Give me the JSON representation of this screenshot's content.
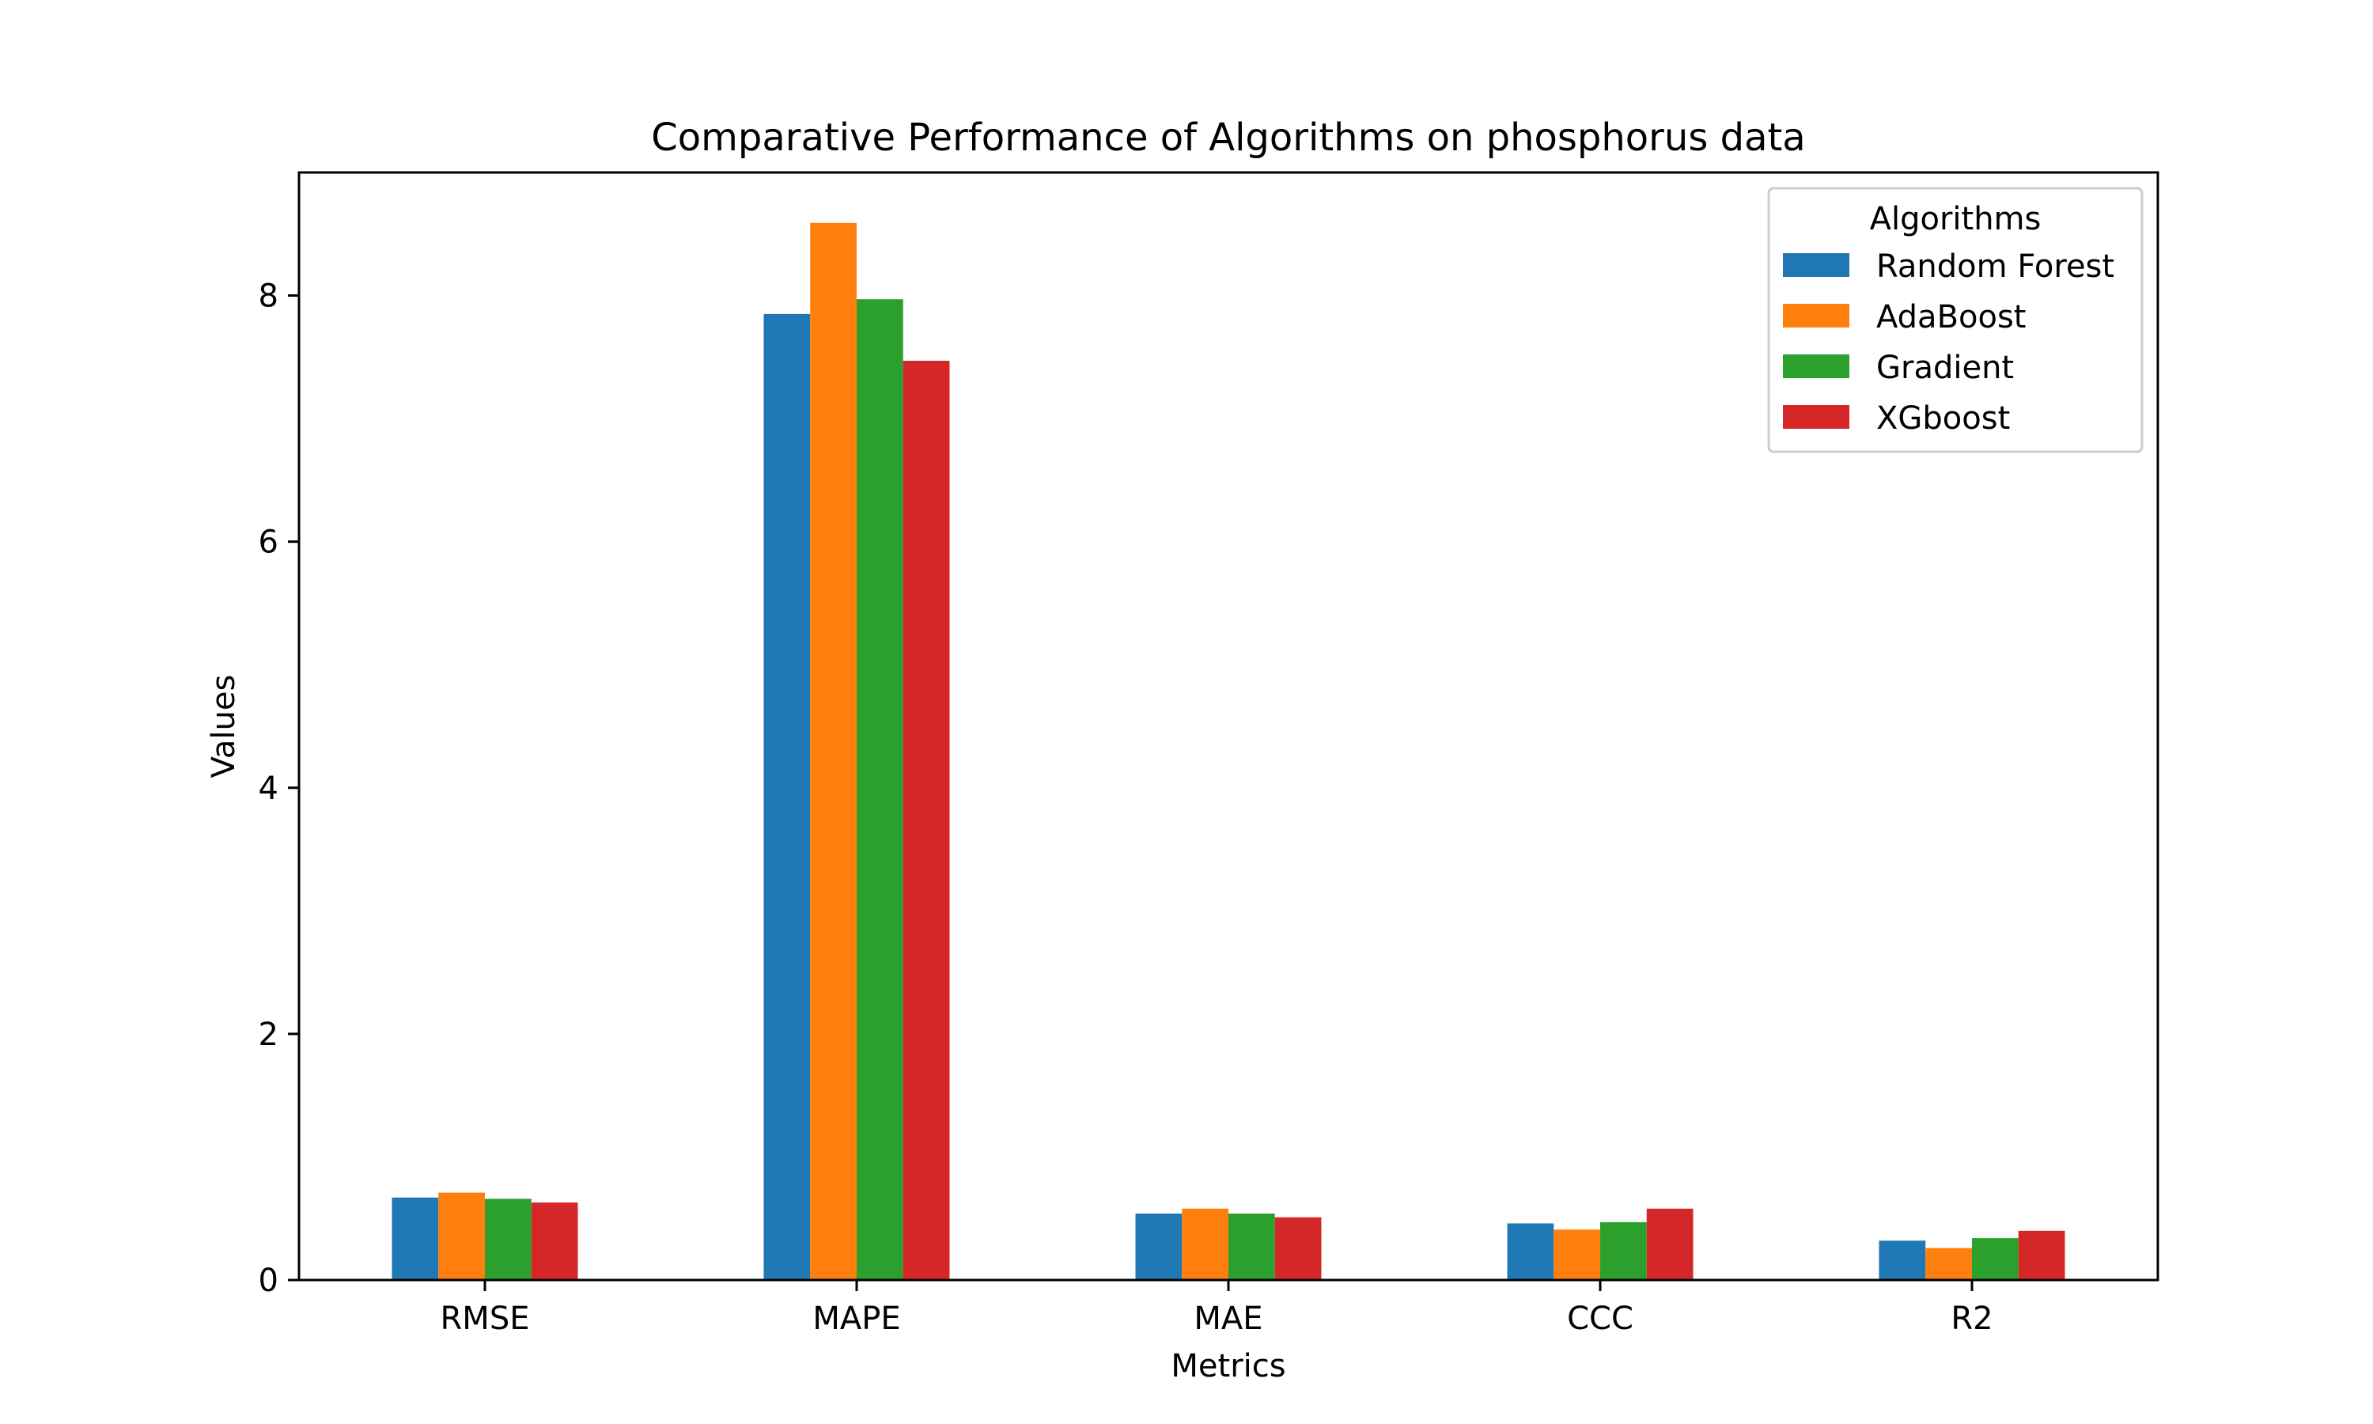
{
  "chart_data": {
    "type": "bar",
    "title": "Comparative Performance of Algorithms on phosphorus data",
    "xlabel": "Metrics",
    "ylabel": "Values",
    "categories": [
      "RMSE",
      "MAPE",
      "MAE",
      "CCC",
      "R2"
    ],
    "yticks": [
      0,
      2,
      4,
      6,
      8
    ],
    "ylim": [
      0,
      9
    ],
    "grid": false,
    "legend": {
      "title": "Algorithms",
      "placement": "top-right"
    },
    "series": [
      {
        "name": "Random Forest",
        "color": "#1f77b4",
        "values": [
          0.67,
          7.85,
          0.54,
          0.46,
          0.32
        ]
      },
      {
        "name": "AdaBoost",
        "color": "#ff7f0e",
        "values": [
          0.71,
          8.59,
          0.58,
          0.41,
          0.26
        ]
      },
      {
        "name": "Gradient",
        "color": "#2ca02c",
        "values": [
          0.66,
          7.97,
          0.54,
          0.47,
          0.34
        ]
      },
      {
        "name": "XGboost",
        "color": "#d62728",
        "values": [
          0.63,
          7.47,
          0.51,
          0.58,
          0.4
        ]
      }
    ]
  }
}
